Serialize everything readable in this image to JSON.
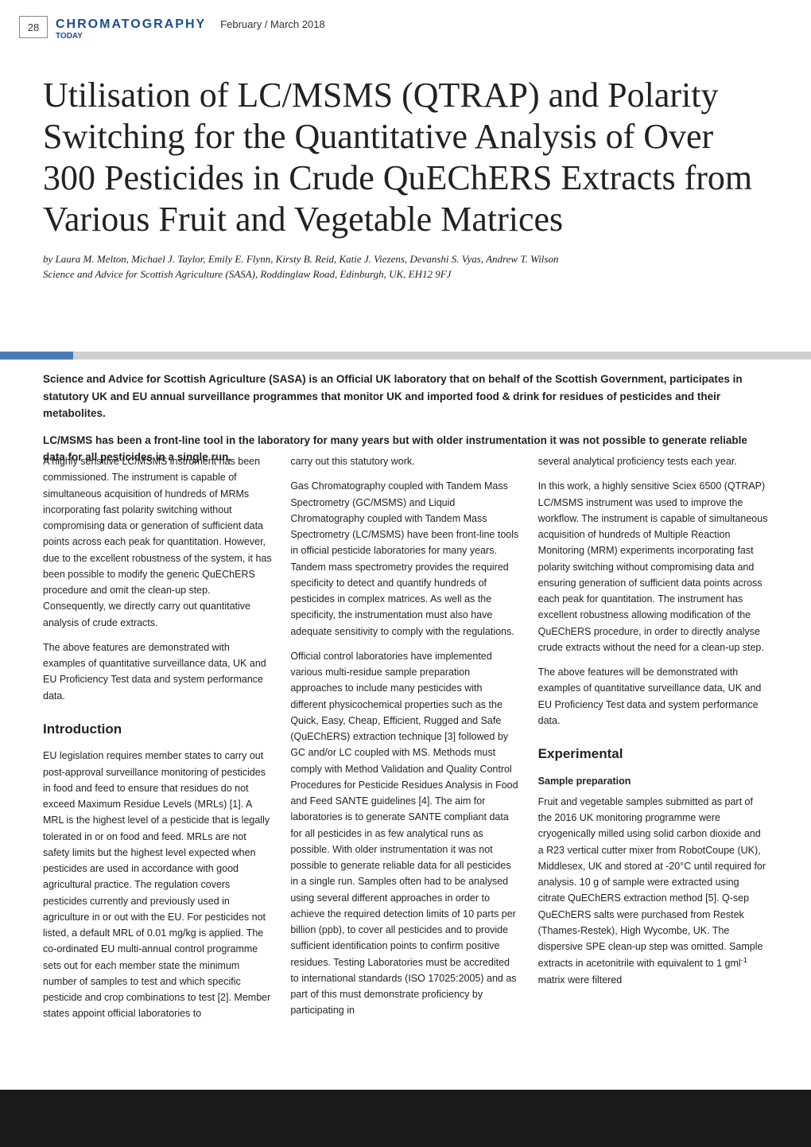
{
  "page_number": "28",
  "magazine": {
    "name": "CHROMATOGRAPHY",
    "sub": "TODAY",
    "issue_date": "February / March 2018",
    "logo_color": "#1a4d8f"
  },
  "article": {
    "title": "Utilisation of LC/MSMS (QTRAP) and Polarity Switching for the Quantitative Analysis of Over 300 Pesticides in Crude QuEChERS Extracts from Various Fruit and Vegetable Matrices",
    "authors": "by Laura M. Melton, Michael J. Taylor, Emily E. Flynn, Kirsty B. Reid, Katie J. Viezens, Devanshi S. Vyas, Andrew T. Wilson",
    "affiliation": "Science and Advice for Scottish Agriculture (SASA), Roddinglaw Road, Edinburgh, UK, EH12 9FJ"
  },
  "divider": {
    "accent_color": "#4a7bb8",
    "base_color": "#d0d0d0"
  },
  "intro": {
    "p1": "Science and Advice for Scottish Agriculture (SASA) is an Official UK laboratory that on behalf of the Scottish Government, participates in statutory UK and EU annual surveillance programmes that monitor UK and imported food & drink for residues of pesticides and their metabolites.",
    "p2": "LC/MSMS has been a front-line tool in the laboratory for many years but with older instrumentation it was not possible to generate reliable data for all pesticides in a single run."
  },
  "body": {
    "col1": {
      "p1": "A highly sensitive LC/MSMS instrument has been commissioned. The instrument is capable of simultaneous acquisition of hundreds of MRMs incorporating fast polarity switching without compromising data or generation of sufficient data points across each peak for quantitation. However, due to the excellent robustness of the system, it has been possible to modify the generic QuEChERS procedure and omit the clean-up step. Consequently, we directly carry out quantitative analysis of crude extracts.",
      "p2": "The above features are demonstrated with examples of quantitative surveillance data, UK and EU Proficiency Test data and system performance data.",
      "heading_intro": "Introduction",
      "p3": "EU legislation requires member states to carry out post-approval surveillance monitoring of pesticides in food and feed to ensure that residues do not exceed Maximum Residue Levels (MRLs) [1]. A MRL is the highest level of a pesticide that is legally tolerated in or on food and feed. MRLs are not safety limits but the highest level expected when pesticides are used in accordance with good agricultural practice. The regulation covers pesticides currently and previously used in agriculture in or out with the EU. For pesticides not listed, a default MRL of 0.01 mg/kg is applied. The co-ordinated EU multi-annual control programme sets out for each member state the minimum number of samples to test and which specific pesticide and crop combinations to test [2]. Member states appoint official laboratories to"
    },
    "col2": {
      "p1": "carry out this statutory work.",
      "p2": "Gas Chromatography coupled with Tandem Mass Spectrometry (GC/MSMS) and Liquid Chromatography coupled with Tandem Mass Spectrometry (LC/MSMS) have been front-line tools in official pesticide laboratories for many years. Tandem mass spectrometry provides the required specificity to detect and quantify hundreds of pesticides in complex matrices. As well as the specificity, the instrumentation must also have adequate sensitivity to comply with the regulations.",
      "p3": "Official control laboratories have implemented various multi-residue sample preparation approaches to include many pesticides with different physicochemical properties such as the Quick, Easy, Cheap, Efficient, Rugged and Safe (QuEChERS) extraction technique [3] followed by GC and/or LC coupled with MS.  Methods must comply with Method Validation and Quality Control Procedures for Pesticide Residues Analysis in Food and Feed SANTE guidelines [4]. The aim for laboratories is to generate SANTE compliant data for all pesticides in as few analytical runs as possible. With older instrumentation it was not possible to generate reliable data for all pesticides in a single run. Samples often had to be analysed using several different approaches in order to achieve the required detection limits of 10 parts per billion (ppb), to cover all pesticides and to provide sufficient identification points to confirm positive residues. Testing Laboratories must be accredited to international standards (ISO 17025:2005) and as part of this must demonstrate proficiency by participating in"
    },
    "col3": {
      "p1": "several analytical proficiency tests each year.",
      "p2": "In this work, a highly sensitive Sciex 6500 (QTRAP) LC/MSMS instrument was used to improve the workflow. The instrument is capable of simultaneous acquisition of hundreds of Multiple Reaction Monitoring (MRM) experiments incorporating fast polarity switching without compromising data and ensuring generation of sufficient data points across each peak for quantitation. The instrument has excellent robustness allowing modification of the QuEChERS procedure, in order to directly analyse crude extracts without the need for a clean-up step.",
      "p3": "The above features will be demonstrated with examples of quantitative surveillance data, UK and EU Proficiency Test data and system performance data.",
      "heading_exp": "Experimental",
      "sub_sample": "Sample preparation",
      "p4_pre": "Fruit and vegetable samples submitted as part of the 2016 UK monitoring programme were cryogenically milled using solid carbon dioxide and a R23 vertical cutter mixer from RobotCoupe (UK), Middlesex, UK and stored at -20°C until required for analysis. 10 g of sample were extracted using citrate QuEChERS extraction method [5]. Q-sep QuEChERS salts were purchased from Restek (Thames-Restek), High Wycombe, UK. The dispersive SPE clean-up step was omitted. Sample extracts in acetonitrile with equivalent to 1 gml",
      "p4_sup": "-1",
      "p4_post": " matrix were filtered"
    }
  },
  "footer": {
    "background_color": "#1a1a1a"
  }
}
